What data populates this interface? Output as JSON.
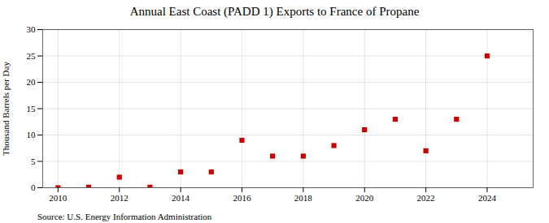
{
  "chart_data": {
    "type": "scatter",
    "title": "Annual East Coast (PADD 1) Exports to France of Propane",
    "ylabel": "Thousand Barrels per Day",
    "source": "Source: U.S. Energy Information Administration",
    "x": [
      2010,
      2011,
      2012,
      2013,
      2014,
      2015,
      2016,
      2017,
      2018,
      2019,
      2020,
      2021,
      2022,
      2023,
      2024
    ],
    "values": [
      0,
      0.1,
      2,
      0.1,
      3,
      3,
      9,
      6,
      6,
      8,
      11,
      13,
      7,
      13,
      25
    ],
    "color": "#cc0000",
    "marker": "square",
    "xlim": [
      2009.5,
      2025.5
    ],
    "xticks": [
      2010,
      2012,
      2014,
      2016,
      2018,
      2020,
      2022,
      2024
    ],
    "ylim": [
      0,
      30
    ],
    "yticks": [
      0,
      5,
      10,
      15,
      20,
      25,
      30
    ],
    "grid": true
  }
}
